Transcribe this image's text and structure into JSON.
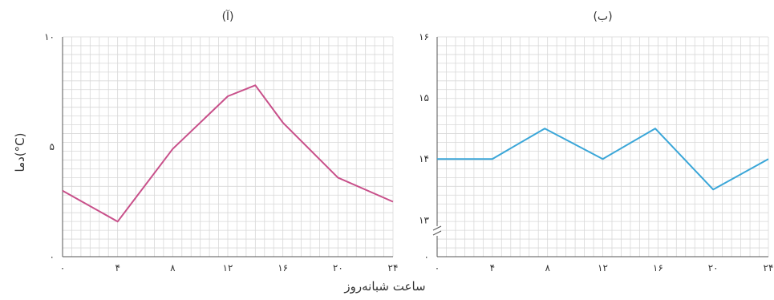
{
  "ylabel": "دما(°C)",
  "xlabel": "ساعت شبانه‌روز",
  "chart_data": [
    {
      "type": "line",
      "title": "(آ)",
      "x": [
        0,
        4,
        8,
        12,
        14,
        16,
        20,
        24
      ],
      "x_tick_values": [
        0,
        4,
        8,
        12,
        16,
        20,
        24
      ],
      "x_tick_labels": [
        "۰",
        "۴",
        "۸",
        "۱۲",
        "۱۶",
        "۲۰",
        "۲۴"
      ],
      "xlim": [
        0,
        24
      ],
      "ylim": [
        0,
        10
      ],
      "y_tick_values": [
        0,
        5,
        10
      ],
      "y_tick_labels": [
        "۰",
        "۵",
        "۱۰"
      ],
      "series": [
        {
          "values": [
            3.0,
            1.6,
            4.9,
            7.3,
            7.8,
            6.1,
            3.6,
            2.5
          ],
          "color": "#c8508a"
        }
      ],
      "grid": true
    },
    {
      "type": "line",
      "title": "(ب)",
      "x": [
        0,
        4,
        8,
        12,
        16,
        20,
        24
      ],
      "x_tick_values": [
        0,
        4,
        8,
        12,
        16,
        20,
        24
      ],
      "x_tick_labels": [
        "۰",
        "۴",
        "۸",
        "۱۲",
        "۱۶",
        "۲۰",
        "۲۴"
      ],
      "xlim": [
        0,
        24
      ],
      "ylim": [
        12.4,
        16
      ],
      "y_tick_values": [
        13,
        14,
        15,
        16
      ],
      "y_tick_labels": [
        "۱۳",
        "۱۴",
        "۱۵",
        "۱۶"
      ],
      "y_zero_label": "۰",
      "y_axis_break": true,
      "series": [
        {
          "x": [
            0,
            4,
            7.8,
            12,
            15.8,
            20,
            24
          ],
          "values": [
            14.0,
            14.0,
            14.5,
            14.0,
            14.5,
            13.5,
            14.0
          ],
          "color": "#3aa6d8"
        }
      ],
      "grid": true
    }
  ],
  "colors": {
    "grid": "#d8d8d8",
    "axis": "#555555"
  }
}
